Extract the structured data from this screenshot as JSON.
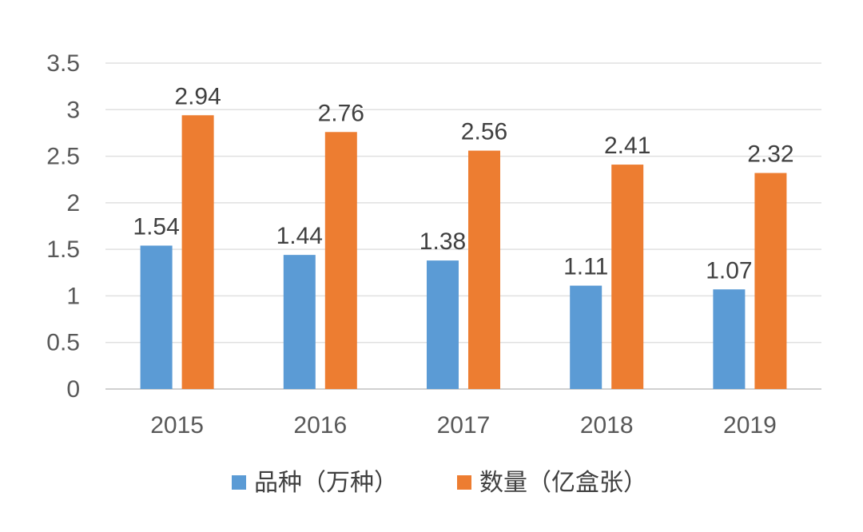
{
  "chart_data": {
    "type": "bar",
    "title": "",
    "xlabel": "",
    "ylabel": "",
    "categories": [
      "2015",
      "2016",
      "2017",
      "2018",
      "2019"
    ],
    "series": [
      {
        "name": "品种（万种）",
        "color": "#5b9bd5",
        "values": [
          1.54,
          1.44,
          1.38,
          1.11,
          1.07
        ],
        "labels": [
          "1.54",
          "1.44",
          "1.38",
          "1.11",
          "1.07"
        ]
      },
      {
        "name": "数量（亿盒张）",
        "color": "#ed7d31",
        "values": [
          2.94,
          2.76,
          2.56,
          2.41,
          2.32
        ],
        "labels": [
          "2.94",
          "2.76",
          "2.56",
          "2.41",
          "2.32"
        ]
      }
    ],
    "ylim": [
      0,
      3.5
    ],
    "yticks": [
      "0",
      "0.5",
      "1",
      "1.5",
      "2",
      "2.5",
      "3",
      "3.5"
    ],
    "grid": true,
    "legend": "bottom"
  }
}
